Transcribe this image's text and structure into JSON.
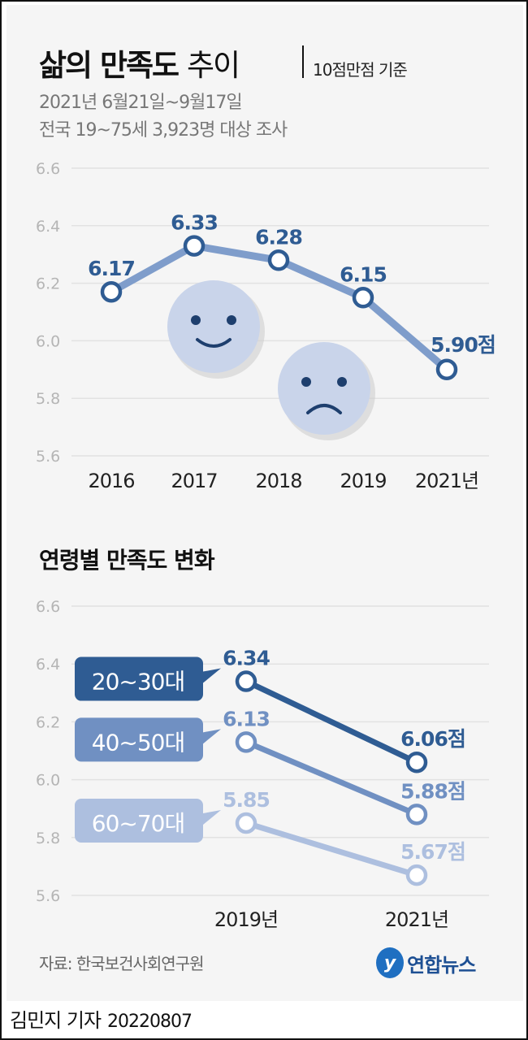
{
  "header": {
    "title_bold": "삶의 만족도",
    "title_light": "추이",
    "unit_note": "10점만점 기준",
    "subtitle_lines": [
      "2021년 6월21일~9월17일",
      "전국 19~75세 3,923명 대상 조사"
    ]
  },
  "section2_title": "연령별 만족도 변화",
  "footer": {
    "source": "자료: 한국보건사회연구원",
    "logo_text": "연합뉴스",
    "reporter": "김민지 기자",
    "date": "20220807"
  },
  "colors": {
    "dark": "#2f5c93",
    "mid": "#7090c2",
    "light": "#adbfdf",
    "line1": "#7f9dcb",
    "grid": "#e2e2e2",
    "tick": "#b5b5b5"
  },
  "icons": [
    "smiley-face-icon",
    "sad-face-icon",
    "yonhap-logo-icon"
  ],
  "chart_data": [
    {
      "type": "line",
      "title": "삶의 만족도 추이",
      "categories": [
        "2016",
        "2017",
        "2018",
        "2019",
        "2021년"
      ],
      "values": [
        6.17,
        6.33,
        6.28,
        6.15,
        5.9
      ],
      "data_labels": [
        "6.17",
        "6.33",
        "6.28",
        "6.15",
        "5.90점"
      ],
      "yticks": [
        "6.6",
        "6.4",
        "6.2",
        "6.0",
        "5.8",
        "5.6"
      ],
      "ylim": [
        5.6,
        6.6
      ],
      "grid": true
    },
    {
      "type": "line",
      "title": "연령별 만족도 변화",
      "categories": [
        "2019년",
        "2021년"
      ],
      "yticks": [
        "6.6",
        "6.4",
        "6.2",
        "6.0",
        "5.8",
        "5.6"
      ],
      "ylim": [
        5.6,
        6.6
      ],
      "grid": true,
      "series": [
        {
          "name": "20~30대",
          "values": [
            6.34,
            6.06
          ],
          "data_labels": [
            "6.34",
            "6.06점"
          ],
          "color": "#2f5c93"
        },
        {
          "name": "40~50대",
          "values": [
            6.13,
            5.88
          ],
          "data_labels": [
            "6.13",
            "5.88점"
          ],
          "color": "#7090c2"
        },
        {
          "name": "60~70대",
          "values": [
            5.85,
            5.67
          ],
          "data_labels": [
            "5.85",
            "5.67점"
          ],
          "color": "#adbfdf"
        }
      ]
    }
  ]
}
